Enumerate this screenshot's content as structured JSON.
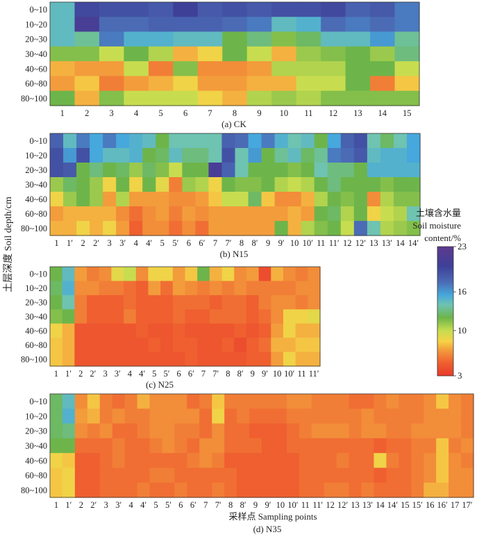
{
  "figure": {
    "ylabel": "土层深度 Soil depth/cm",
    "xlabel": "采样点 Sampling points"
  },
  "colorbar": {
    "title_cn": "土壤含水量",
    "title_en_1": "Soil moisture",
    "title_en_2": "content/%",
    "min": 3,
    "max": 23,
    "ticks": [
      {
        "value": 23,
        "label": "23"
      },
      {
        "value": 16,
        "label": "16"
      },
      {
        "value": 10,
        "label": "10"
      },
      {
        "value": 3,
        "label": "3"
      }
    ],
    "colors": [
      {
        "v": 3,
        "c": "#e93a2b"
      },
      {
        "v": 5,
        "c": "#ef5f30"
      },
      {
        "v": 7,
        "c": "#f39c3c"
      },
      {
        "v": 8.3,
        "c": "#f6d246"
      },
      {
        "v": 10,
        "c": "#c7dd4f"
      },
      {
        "v": 12,
        "c": "#6db54a"
      },
      {
        "v": 14,
        "c": "#6ec3b1"
      },
      {
        "v": 15.5,
        "c": "#46a8dc"
      },
      {
        "v": 17.5,
        "c": "#4b6bb5"
      },
      {
        "v": 20,
        "c": "#3e4098"
      },
      {
        "v": 23,
        "c": "#5e3a8e"
      }
    ]
  },
  "chart_data": [
    {
      "type": "heatmap",
      "title": "(a) CK",
      "rows": [
        "0~10",
        "10~20",
        "20~30",
        "30~40",
        "40~60",
        "60~80",
        "80~100"
      ],
      "columns": [
        "1",
        "2",
        "3",
        "4",
        "5",
        "6",
        "7",
        "8",
        "9",
        "10",
        "11",
        "12",
        "13",
        "14",
        "15"
      ],
      "values": [
        [
          14.5,
          19.5,
          19,
          19,
          18.5,
          20,
          18.5,
          19,
          18.5,
          19,
          19,
          19.5,
          18,
          18.5,
          17
        ],
        [
          14.5,
          21,
          17.5,
          17.5,
          18,
          18,
          18,
          17.5,
          17,
          14.5,
          15,
          17.5,
          17,
          17.5,
          17
        ],
        [
          14.5,
          13.5,
          17,
          15,
          15,
          14.5,
          14.5,
          12,
          13,
          11.5,
          12.5,
          14.5,
          14.5,
          16,
          13.5
        ],
        [
          11.5,
          11.5,
          10,
          12,
          10.5,
          7.5,
          8.5,
          12,
          10,
          7.5,
          11,
          11.5,
          12,
          11,
          13
        ],
        [
          7.5,
          7,
          7,
          10,
          6,
          11.5,
          6.5,
          6.5,
          7,
          10.5,
          10.5,
          10.5,
          12,
          12,
          10
        ],
        [
          7,
          8,
          6,
          7,
          7.5,
          8.5,
          7,
          7,
          7.5,
          7.5,
          10,
          10,
          12,
          6,
          8
        ],
        [
          12,
          7.5,
          11.5,
          10,
          10,
          10,
          8.5,
          7.5,
          10.5,
          11,
          10.5,
          11.5,
          11.5,
          11.5,
          11.5
        ]
      ]
    },
    {
      "type": "heatmap",
      "title": "(b) N15",
      "rows": [
        "0~10",
        "10~20",
        "20~30",
        "30~40",
        "40~60",
        "60~80",
        "80~100"
      ],
      "columns": [
        "1",
        "1′",
        "2",
        "2′",
        "3",
        "3′",
        "4",
        "4′",
        "5",
        "5′",
        "6",
        "6′",
        "7",
        "7′",
        "8",
        "8′",
        "9",
        "9′",
        "10",
        "10′",
        "11",
        "11′",
        "12",
        "12′",
        "13",
        "13′",
        "14",
        "14′"
      ],
      "values": [
        [
          18,
          14.5,
          17,
          15.5,
          17,
          15.5,
          15,
          14.5,
          12,
          14,
          14,
          14,
          14,
          18,
          17.5,
          15.5,
          17,
          15,
          14,
          14.5,
          12,
          15.5,
          18,
          19,
          14,
          12.5,
          14,
          15.5
        ],
        [
          19,
          16,
          19,
          15.5,
          14.5,
          14.5,
          15,
          12,
          12.5,
          14.5,
          13,
          13,
          14,
          19,
          14,
          16,
          12,
          13.5,
          14.5,
          12.5,
          13.5,
          17,
          17.5,
          18.5,
          14.5,
          15,
          15,
          15.5
        ],
        [
          19,
          18.5,
          12,
          13,
          12,
          12.5,
          11,
          12.5,
          11.5,
          10,
          12,
          12,
          21,
          18,
          14,
          12,
          12,
          12,
          11.5,
          12,
          14,
          13,
          13,
          12,
          15,
          15,
          15,
          15
        ],
        [
          11,
          12.5,
          12,
          11,
          8.5,
          12,
          8.5,
          12,
          9,
          6,
          11,
          10.5,
          8.5,
          12,
          11.5,
          11.5,
          12,
          10.5,
          10,
          10.5,
          12,
          13,
          12,
          12,
          12,
          11.5,
          12,
          12
        ],
        [
          8.5,
          11,
          12,
          11,
          7,
          10.5,
          7,
          7,
          7,
          6.5,
          6.5,
          7,
          8,
          10,
          10,
          12.5,
          8,
          6.5,
          6.5,
          7.5,
          10.5,
          12,
          11.5,
          12,
          6.5,
          10.5,
          11.5,
          11.5
        ],
        [
          7,
          7.5,
          7.5,
          7.5,
          7.5,
          6.5,
          5.5,
          6.5,
          7,
          6,
          7,
          6.5,
          7,
          7,
          7,
          7,
          7,
          7,
          7.5,
          7,
          12,
          12.5,
          10.5,
          12,
          8.5,
          10,
          10.5,
          14
        ],
        [
          7.5,
          7.5,
          8.5,
          7.5,
          8.5,
          7,
          5,
          6.5,
          6.5,
          5.5,
          6.5,
          5.5,
          7,
          7,
          7,
          7,
          7,
          12,
          7.5,
          10.5,
          11.5,
          12,
          10,
          17.5,
          14,
          10.5,
          11,
          11.5
        ]
      ]
    },
    {
      "type": "heatmap",
      "title": "(c) N25",
      "rows": [
        "0~10",
        "10~20",
        "20~30",
        "30~40",
        "40~60",
        "60~80",
        "80~100"
      ],
      "columns": [
        "1",
        "1′",
        "2",
        "2′",
        "3",
        "3′",
        "4",
        "4′",
        "5",
        "5′",
        "6",
        "6′",
        "7",
        "7′",
        "8",
        "8′",
        "9",
        "9′",
        "10",
        "10′",
        "11",
        "11′"
      ],
      "values": [
        [
          12,
          14.5,
          7,
          6,
          6.5,
          9,
          10,
          6.5,
          8.5,
          8.5,
          7,
          8,
          12,
          7.5,
          8.5,
          6.5,
          7,
          4,
          7.5,
          6.5,
          6,
          6.5
        ],
        [
          12.5,
          15,
          6.5,
          6.5,
          6,
          6,
          5.5,
          5,
          7,
          5.5,
          7,
          6.5,
          6,
          6.5,
          6,
          6.5,
          6,
          6,
          6,
          6,
          6.5,
          6.5
        ],
        [
          12,
          14,
          6,
          5,
          5,
          5,
          5.5,
          5,
          5,
          5,
          5.5,
          5.5,
          5.5,
          5,
          5.5,
          5.5,
          5,
          6,
          6.5,
          6.5,
          6,
          6.5
        ],
        [
          11.5,
          12,
          6,
          5,
          5,
          5,
          6,
          5,
          5,
          5,
          5.5,
          5,
          5,
          5.5,
          5.5,
          5.5,
          5,
          5.5,
          6.5,
          8.5,
          8.5,
          9
        ],
        [
          8.5,
          7.5,
          4.5,
          4.5,
          4.5,
          4.5,
          4.5,
          5,
          4.5,
          4.5,
          5,
          4.5,
          4.5,
          4.5,
          4.5,
          5,
          4.5,
          5,
          7,
          8.5,
          7.5,
          7.5
        ],
        [
          8,
          7.5,
          4.5,
          4.5,
          4.5,
          4.5,
          4.5,
          4.5,
          5,
          4.5,
          5,
          5,
          4.5,
          4.5,
          5,
          4,
          5,
          5.5,
          7.5,
          7.5,
          8,
          8
        ],
        [
          8,
          7.5,
          4.5,
          4.5,
          4.5,
          4.5,
          4.5,
          4.5,
          4.5,
          4.5,
          4.5,
          5,
          4.5,
          4.5,
          4.5,
          4.5,
          5,
          5,
          7,
          8.5,
          7.5,
          7.5
        ]
      ]
    },
    {
      "type": "heatmap",
      "title": "(d) N35",
      "rows": [
        "0~10",
        "10~20",
        "20~30",
        "30~40",
        "40~60",
        "60~80",
        "80~100"
      ],
      "columns": [
        "1",
        "1′",
        "2",
        "2′",
        "3",
        "3′",
        "4",
        "4′",
        "5",
        "5′",
        "6",
        "6′",
        "7",
        "7′",
        "8",
        "8′",
        "9",
        "9′",
        "10",
        "10′",
        "11",
        "11′",
        "12",
        "12′",
        "13",
        "13′",
        "14",
        "14′",
        "15",
        "15′",
        "16",
        "16′",
        "17",
        "17′"
      ],
      "values": [
        [
          12.5,
          14.5,
          6.5,
          8,
          6,
          5.5,
          6,
          7.5,
          6.5,
          6.5,
          6.5,
          5.5,
          6,
          8,
          6,
          6,
          6,
          6,
          6,
          6.5,
          6.5,
          6,
          6,
          6,
          5.5,
          5.5,
          6,
          6.5,
          6,
          6,
          6.5,
          8,
          6.5,
          6
        ],
        [
          12.5,
          15,
          7,
          7.5,
          6,
          6.5,
          6,
          6,
          6.5,
          6.5,
          6.5,
          6.5,
          5.5,
          8.5,
          5.5,
          6,
          5.5,
          5.5,
          5.5,
          6,
          6,
          6,
          6,
          6,
          6,
          6.5,
          6,
          6,
          6,
          6,
          6.5,
          6.5,
          6.5,
          6
        ],
        [
          12.5,
          13,
          6.5,
          6,
          6.5,
          5.5,
          5.5,
          6,
          6.5,
          6.5,
          6,
          6,
          5.5,
          6.5,
          5.5,
          5.5,
          5,
          5,
          5,
          5.5,
          6,
          6.5,
          6.5,
          6.5,
          6,
          6.5,
          6.5,
          6,
          6,
          6.5,
          6.5,
          6.5,
          6.5,
          6
        ],
        [
          12,
          12,
          5.5,
          5.5,
          5.5,
          6,
          5.5,
          5.5,
          6,
          6.5,
          6,
          5.5,
          6.5,
          6.5,
          5.5,
          5.5,
          5.5,
          5,
          5,
          5.5,
          5.5,
          5.5,
          5.5,
          5.5,
          5.5,
          5.5,
          5,
          5.5,
          5.5,
          6,
          6,
          8,
          6,
          6.5
        ],
        [
          8.5,
          8,
          5,
          5,
          5.5,
          6,
          5.5,
          5.5,
          5.5,
          5.5,
          5.5,
          6,
          6.5,
          6,
          5,
          5,
          5,
          5,
          5,
          5,
          5.5,
          5.5,
          5.5,
          6,
          5.5,
          5.5,
          8.5,
          6,
          5.5,
          6,
          6.5,
          8,
          6.5,
          6
        ],
        [
          8,
          8.5,
          5,
          5,
          5.5,
          5.5,
          5.5,
          5.5,
          6,
          6,
          5.5,
          5.5,
          5.5,
          5.5,
          5.5,
          5,
          5,
          5,
          5,
          5,
          5.5,
          5.5,
          5.5,
          5.5,
          5.5,
          5.5,
          5,
          5.5,
          5.5,
          6,
          6.5,
          8,
          6.5,
          6.5
        ],
        [
          8,
          8.5,
          5,
          5,
          5.5,
          5.5,
          5.5,
          6,
          5.5,
          5.5,
          6,
          5.5,
          5.5,
          6,
          5.5,
          5,
          5,
          5,
          5,
          5,
          5.5,
          5.5,
          6,
          6,
          5.5,
          6,
          5.5,
          5.5,
          5.5,
          6,
          7.5,
          7.5,
          6.5,
          6.5
        ]
      ]
    }
  ]
}
